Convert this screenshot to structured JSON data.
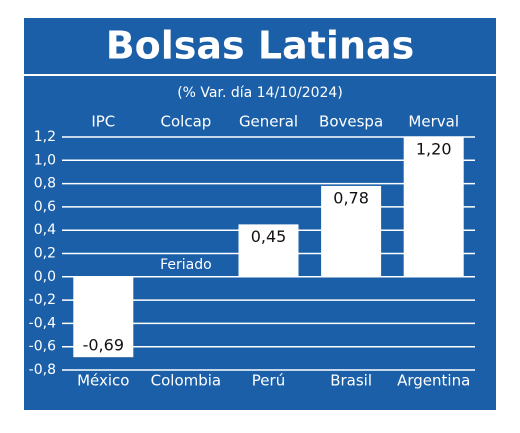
{
  "chart_data": {
    "type": "bar",
    "title": "Bolsas Latinas",
    "subtitle": "(% Var. día 14/10/2024)",
    "categories": [
      "México",
      "Colombia",
      "Perú",
      "Brasil",
      "Argentina"
    ],
    "index_names": [
      "IPC",
      "Colcap",
      "General",
      "Bovespa",
      "Merval"
    ],
    "values": [
      -0.69,
      null,
      0.45,
      0.78,
      1.2
    ],
    "value_labels": [
      "-0,69",
      null,
      "0,45",
      "0,78",
      "1,20"
    ],
    "annotation": "Feriado",
    "color": "#ffffff",
    "background": "#1b5fa8",
    "ylim": [
      -0.8,
      1.2
    ],
    "yticks": [
      {
        "value": -0.8,
        "label": "-0,8"
      },
      {
        "value": -0.6,
        "label": "-0,6"
      },
      {
        "value": -0.4,
        "label": "-0,4"
      },
      {
        "value": -0.2,
        "label": "-0,2"
      },
      {
        "value": 0,
        "label": "0,0"
      },
      {
        "value": 0.2,
        "label": "0,2"
      },
      {
        "value": 0.4,
        "label": "0,4"
      },
      {
        "value": 0.6,
        "label": "0,6"
      },
      {
        "value": 0.8,
        "label": "0,8"
      },
      {
        "value": 1.0,
        "label": "1,0"
      },
      {
        "value": 1.2,
        "label": "1,2"
      }
    ],
    "grid": true
  }
}
